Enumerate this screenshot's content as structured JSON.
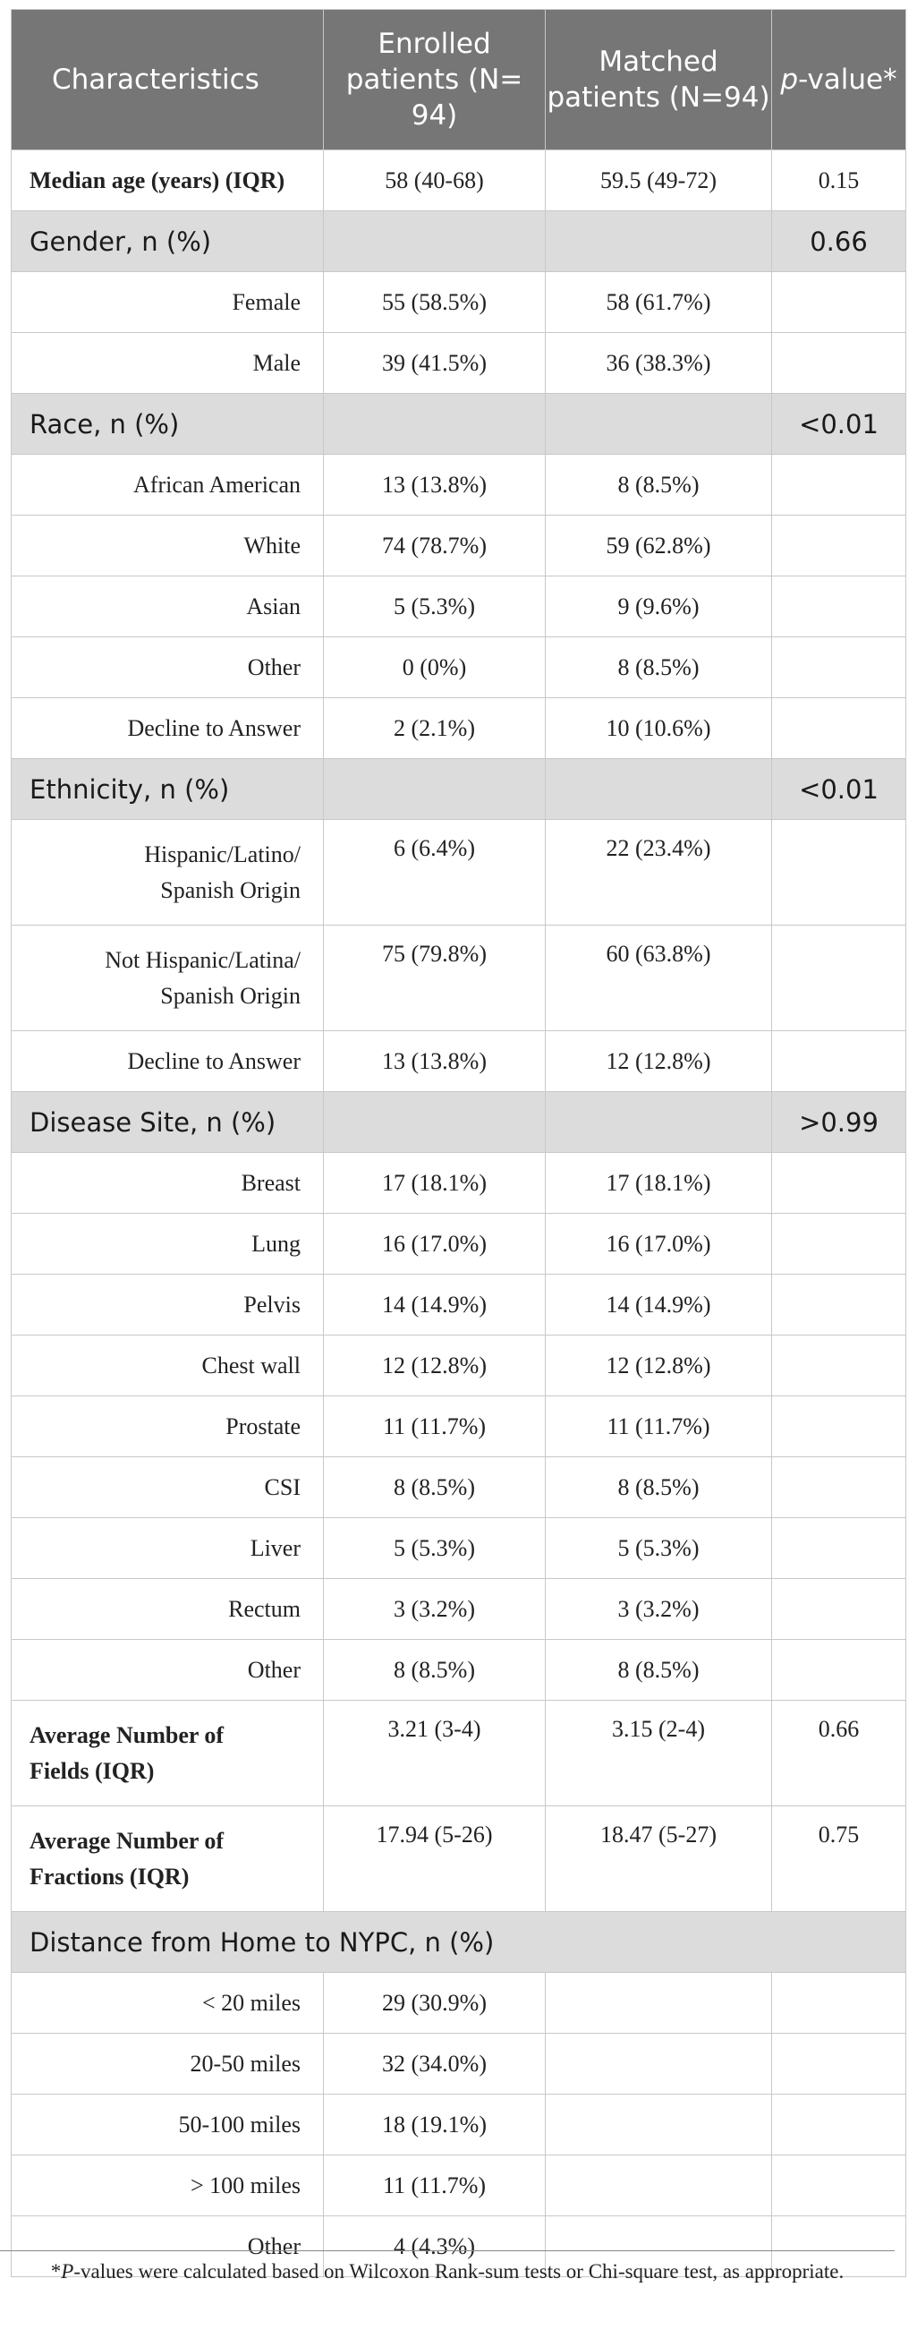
{
  "header": {
    "col1": "Characteristics",
    "col2": "Enrolled patients (N= 94)",
    "col3": "Matched patients (N=94)",
    "col4_italic": "p",
    "col4_rest": "-value*"
  },
  "rows": [
    {
      "kind": "bold",
      "label": "Median age (years) (IQR)",
      "enrolled": "58 (40-68)",
      "matched": "59.5 (49-72)",
      "p": "0.15"
    },
    {
      "kind": "section",
      "label": "Gender, n (%)",
      "p": "0.66"
    },
    {
      "kind": "item",
      "label": "Female",
      "enrolled": "55 (58.5%)",
      "matched": "58 (61.7%)",
      "p": ""
    },
    {
      "kind": "item",
      "label": "Male",
      "enrolled": "39 (41.5%)",
      "matched": "36 (38.3%)",
      "p": ""
    },
    {
      "kind": "section",
      "label": "Race, n (%)",
      "p": "<0.01"
    },
    {
      "kind": "item",
      "label": "African American",
      "enrolled": "13 (13.8%)",
      "matched": "8 (8.5%)",
      "p": ""
    },
    {
      "kind": "item",
      "label": "White",
      "enrolled": "74 (78.7%)",
      "matched": "59 (62.8%)",
      "p": ""
    },
    {
      "kind": "item",
      "label": "Asian",
      "enrolled": "5 (5.3%)",
      "matched": "9 (9.6%)",
      "p": ""
    },
    {
      "kind": "item",
      "label": "Other",
      "enrolled": "0 (0%)",
      "matched": "8 (8.5%)",
      "p": ""
    },
    {
      "kind": "item",
      "label": "Decline to Answer",
      "enrolled": "2 (2.1%)",
      "matched": "10 (10.6%)",
      "p": ""
    },
    {
      "kind": "section",
      "label": "Ethnicity, n (%)",
      "p": "<0.01"
    },
    {
      "kind": "item2",
      "label": [
        "Hispanic/Latino/",
        "Spanish Origin"
      ],
      "enrolled": "6 (6.4%)",
      "matched": "22 (23.4%)",
      "p": ""
    },
    {
      "kind": "item2",
      "label": [
        "Not Hispanic/Latina/",
        "Spanish Origin"
      ],
      "enrolled": "75 (79.8%)",
      "matched": "60 (63.8%)",
      "p": ""
    },
    {
      "kind": "item",
      "label": "Decline to Answer",
      "enrolled": "13 (13.8%)",
      "matched": "12 (12.8%)",
      "p": ""
    },
    {
      "kind": "section",
      "label": "Disease Site, n (%)",
      "p": ">0.99"
    },
    {
      "kind": "item",
      "label": "Breast",
      "enrolled": "17 (18.1%)",
      "matched": "17 (18.1%)",
      "p": ""
    },
    {
      "kind": "item",
      "label": "Lung",
      "enrolled": "16 (17.0%)",
      "matched": "16 (17.0%)",
      "p": ""
    },
    {
      "kind": "item",
      "label": "Pelvis",
      "enrolled": "14 (14.9%)",
      "matched": "14 (14.9%)",
      "p": ""
    },
    {
      "kind": "item",
      "label": "Chest wall",
      "enrolled": "12 (12.8%)",
      "matched": "12 (12.8%)",
      "p": ""
    },
    {
      "kind": "item",
      "label": "Prostate",
      "enrolled": "11 (11.7%)",
      "matched": "11 (11.7%)",
      "p": ""
    },
    {
      "kind": "item",
      "label": "CSI",
      "enrolled": "8 (8.5%)",
      "matched": "8 (8.5%)",
      "p": ""
    },
    {
      "kind": "item",
      "label": "Liver",
      "enrolled": "5 (5.3%)",
      "matched": "5 (5.3%)",
      "p": ""
    },
    {
      "kind": "item",
      "label": "Rectum",
      "enrolled": "3 (3.2%)",
      "matched": "3 (3.2%)",
      "p": ""
    },
    {
      "kind": "item",
      "label": "Other",
      "enrolled": "8 (8.5%)",
      "matched": "8 (8.5%)",
      "p": ""
    },
    {
      "kind": "bold2",
      "label": [
        "Average Number of",
        "Fields (IQR)"
      ],
      "enrolled": "3.21 (3-4)",
      "matched": "3.15 (2-4)",
      "p": "0.66"
    },
    {
      "kind": "bold2",
      "label": [
        "Average Number of",
        "Fractions (IQR)"
      ],
      "enrolled": "17.94 (5-26)",
      "matched": "18.47 (5-27)",
      "p": "0.75"
    },
    {
      "kind": "sectionfull",
      "label": "Distance from Home to NYPC, n (%)"
    },
    {
      "kind": "item",
      "label": "< 20 miles",
      "enrolled": "29 (30.9%)",
      "matched": "",
      "p": ""
    },
    {
      "kind": "item",
      "label": "20-50 miles",
      "enrolled": "32 (34.0%)",
      "matched": "",
      "p": ""
    },
    {
      "kind": "item",
      "label": "50-100 miles",
      "enrolled": "18 (19.1%)",
      "matched": "",
      "p": ""
    },
    {
      "kind": "item",
      "label": "> 100 miles",
      "enrolled": "11 (11.7%)",
      "matched": "",
      "p": ""
    },
    {
      "kind": "item",
      "label": "Other",
      "enrolled": "4 (4.3%)",
      "matched": "",
      "p": ""
    }
  ],
  "footnote": {
    "italic": "P",
    "rest": "-values were calculated based on Wilcoxon Rank-sum tests or Chi-square test, as appropriate.",
    "prefix": "*"
  }
}
